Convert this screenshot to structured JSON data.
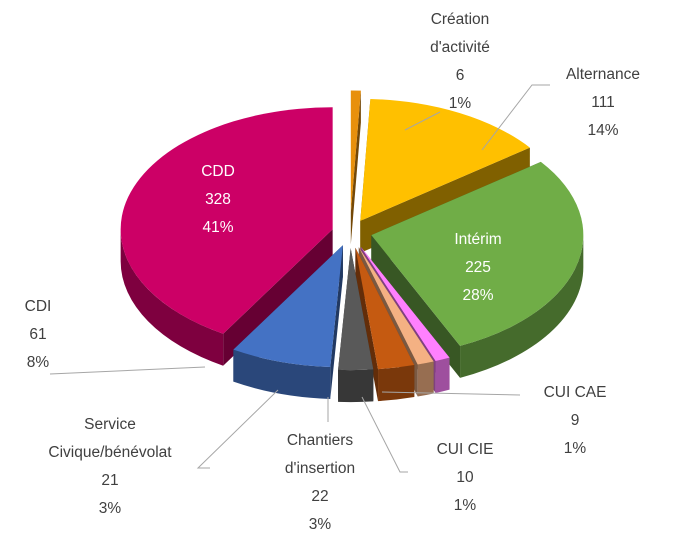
{
  "chart_data": {
    "type": "pie",
    "categories": [
      "Création d'activité",
      "Alternance",
      "Intérim",
      "CUI CAE",
      "CUI CIE",
      "Chantiers d'insertion",
      "Service Civique/bénévolat",
      "CDI",
      "CDD"
    ],
    "values": [
      6,
      111,
      225,
      9,
      10,
      22,
      21,
      61,
      328
    ],
    "percent_labels": [
      "1%",
      "14%",
      "28%",
      "1%",
      "1%",
      "3%",
      "3%",
      "8%",
      "41%"
    ],
    "colors": [
      "#e8900c",
      "#ffc000",
      "#70ad47",
      "#ff80ff",
      "#f4b183",
      "#c55a11",
      "#595959",
      "#4472c4",
      "#cc0066"
    ]
  }
}
